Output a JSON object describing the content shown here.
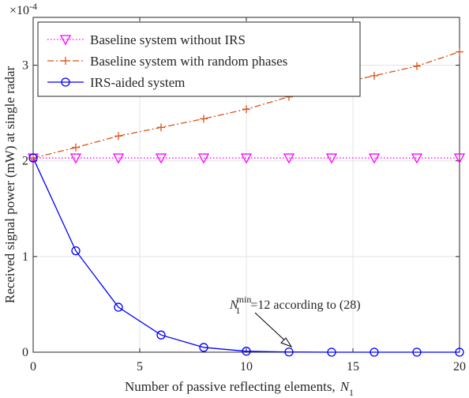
{
  "chart_data": {
    "type": "line",
    "xlabel": "Number of passive reflecting elements,",
    "xlabel_var": "N",
    "xlabel_sub": "1",
    "ylabel": "Received signal power (mW) at single radar",
    "y_multiplier": {
      "base": "×10",
      "exp": "-4"
    },
    "xlim": [
      0,
      20
    ],
    "ylim": [
      0,
      0.00035
    ],
    "x_ticks": [
      0,
      5,
      10,
      15,
      20
    ],
    "x_tick_labels": [
      "0",
      "5",
      "10",
      "15",
      "20"
    ],
    "y_ticks": [
      0,
      0.0001,
      0.0002,
      0.0003
    ],
    "y_tick_labels": [
      "0",
      "1",
      "2",
      "3"
    ],
    "grid": true,
    "legend_position": "top-left",
    "x": [
      0,
      2,
      4,
      6,
      8,
      10,
      12,
      14,
      16,
      18,
      20
    ],
    "series": [
      {
        "name": "Baseline system without IRS",
        "color": "#ff00ff",
        "line_style": "dotted",
        "marker": "triangle-down",
        "values": [
          0.000203,
          0.000203,
          0.000203,
          0.000203,
          0.000203,
          0.000203,
          0.000203,
          0.000203,
          0.000203,
          0.000203,
          0.000203
        ]
      },
      {
        "name": "Baseline system with random phases",
        "color": "#d95319",
        "line_style": "dashdot",
        "marker": "plus",
        "values": [
          0.000203,
          0.000214,
          0.000226,
          0.000235,
          0.000244,
          0.000254,
          0.000267,
          0.000279,
          0.000289,
          0.000299,
          0.000314
        ]
      },
      {
        "name": "IRS-aided system",
        "color": "#0000ff",
        "line_style": "solid",
        "marker": "circle",
        "values": [
          0.000203,
          0.000106,
          4.7e-05,
          1.8e-05,
          5e-06,
          1e-06,
          2e-07,
          0.0,
          0.0,
          0.0,
          0.0
        ]
      }
    ],
    "annotation": {
      "var": "N",
      "sub": "1",
      "sup": "min",
      "text": "=12 according to (28)",
      "arrow_to_x": 12,
      "arrow_to_y": 0.0
    }
  }
}
